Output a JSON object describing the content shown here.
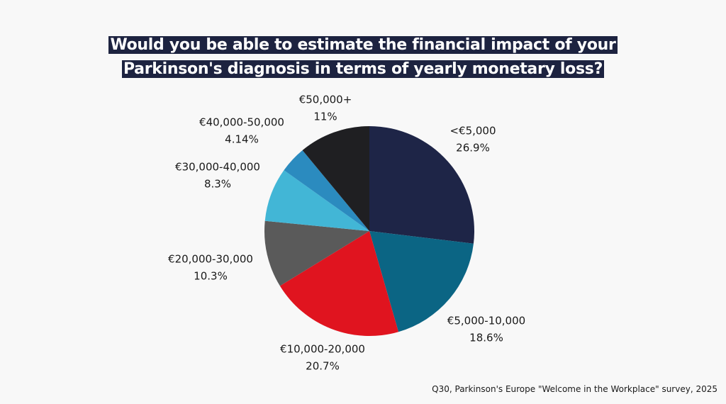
{
  "chart_data": {
    "type": "pie",
    "title": [
      "Would you be able to estimate the financial impact of your",
      "Parkinson's diagnosis in terms of yearly monetary loss?"
    ],
    "categories": [
      "<€5,000",
      "€5,000-10,000",
      "€10,000-20,000",
      "€20,000-30,000",
      "€30,000-40,000",
      "€40,000-50,000",
      "€50,000+"
    ],
    "values": [
      26.9,
      18.6,
      20.7,
      10.3,
      8.3,
      4.14,
      11
    ],
    "value_labels": [
      "26.9%",
      "18.6%",
      "20.7%",
      "10.3%",
      "8.3%",
      "4.14%",
      "11%"
    ],
    "colors": [
      "#1e2547",
      "#0b6584",
      "#e0141f",
      "#5a5a5a",
      "#42b6d6",
      "#2b8bbf",
      "#1f1f22"
    ],
    "source": "Q30, Parkinson's Europe \"Welcome in the Workplace\" survey, 2025"
  }
}
